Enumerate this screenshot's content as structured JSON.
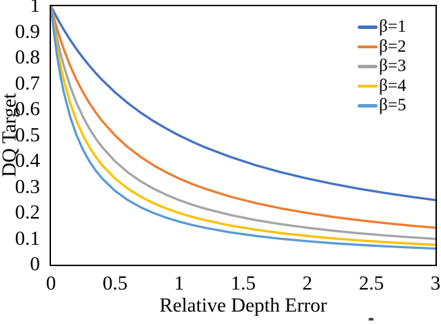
{
  "chart_data": {
    "type": "line",
    "title": "",
    "xlabel": "Relative Depth Error",
    "ylabel": "DQ Target",
    "xlim": [
      0,
      3
    ],
    "ylim": [
      0,
      1
    ],
    "grid": false,
    "legend_position": "inside-top-right",
    "axis_color": "#000000",
    "line_width": 3.3,
    "x_ticks": [
      {
        "label": "0",
        "value": 0
      },
      {
        "label": "0.5",
        "value": 0.5
      },
      {
        "label": "1",
        "value": 1
      },
      {
        "label": "1.5",
        "value": 1.5
      },
      {
        "label": "2",
        "value": 2
      },
      {
        "label": "2.5",
        "value": 2.5
      },
      {
        "label": "3",
        "value": 3
      }
    ],
    "y_ticks": [
      {
        "label": "1",
        "value": 1
      },
      {
        "label": "0.9",
        "value": 0.9
      },
      {
        "label": "0.8",
        "value": 0.8
      },
      {
        "label": "0.7",
        "value": 0.7
      },
      {
        "label": "0.6",
        "value": 0.6
      },
      {
        "label": "0.5",
        "value": 0.5
      },
      {
        "label": "0.4",
        "value": 0.4
      },
      {
        "label": "0.3",
        "value": 0.3
      },
      {
        "label": "0.2",
        "value": 0.2
      },
      {
        "label": "0.1",
        "value": 0.1
      },
      {
        "label": "0",
        "value": 0
      }
    ],
    "x": [
      0,
      0.025,
      0.05,
      0.075,
      0.1,
      0.15,
      0.2,
      0.25,
      0.3,
      0.35,
      0.4,
      0.5,
      0.6,
      0.7,
      0.8,
      0.9,
      1,
      1.1,
      1.2,
      1.4,
      1.6,
      1.8,
      2,
      2.2,
      2.4,
      2.6,
      2.8,
      3
    ],
    "series": [
      {
        "name": "β=1",
        "color": "#4472C4",
        "values": [
          1,
          0.9756,
          0.9524,
          0.9302,
          0.9091,
          0.8696,
          0.8333,
          0.8,
          0.7692,
          0.7407,
          0.7143,
          0.6667,
          0.625,
          0.5882,
          0.5556,
          0.5263,
          0.5,
          0.4762,
          0.4545,
          0.4167,
          0.3846,
          0.3571,
          0.3333,
          0.3125,
          0.2941,
          0.2778,
          0.2632,
          0.25
        ]
      },
      {
        "name": "β=2",
        "color": "#ED7D31",
        "values": [
          1,
          0.9524,
          0.9091,
          0.8696,
          0.8333,
          0.7692,
          0.7143,
          0.6667,
          0.625,
          0.5882,
          0.5556,
          0.5,
          0.4545,
          0.4167,
          0.3846,
          0.3571,
          0.3333,
          0.3125,
          0.2941,
          0.2632,
          0.2381,
          0.2174,
          0.2,
          0.1852,
          0.1724,
          0.1613,
          0.1515,
          0.1429
        ]
      },
      {
        "name": "β=3",
        "color": "#A5A5A5",
        "values": [
          1,
          0.9302,
          0.8696,
          0.8163,
          0.7692,
          0.6897,
          0.625,
          0.5714,
          0.5263,
          0.4878,
          0.4545,
          0.4,
          0.3571,
          0.3226,
          0.2941,
          0.2703,
          0.25,
          0.2326,
          0.2174,
          0.1923,
          0.1724,
          0.1563,
          0.1429,
          0.1316,
          0.122,
          0.1136,
          0.1064,
          0.1
        ]
      },
      {
        "name": "β=4",
        "color": "#FFC000",
        "values": [
          1,
          0.9091,
          0.8333,
          0.7692,
          0.7143,
          0.625,
          0.5556,
          0.5,
          0.4545,
          0.4167,
          0.3846,
          0.3333,
          0.2941,
          0.2632,
          0.2381,
          0.2174,
          0.2,
          0.1852,
          0.1724,
          0.1515,
          0.1351,
          0.122,
          0.1111,
          0.102,
          0.0943,
          0.0877,
          0.082,
          0.0769
        ]
      },
      {
        "name": "β=5",
        "color": "#5B9BD5",
        "values": [
          1,
          0.8889,
          0.8,
          0.7273,
          0.6667,
          0.5714,
          0.5,
          0.4444,
          0.4,
          0.3636,
          0.3333,
          0.2857,
          0.25,
          0.2222,
          0.2,
          0.1818,
          0.1667,
          0.1538,
          0.1429,
          0.125,
          0.1111,
          0.1,
          0.0909,
          0.0833,
          0.0769,
          0.0714,
          0.0667,
          0.0625
        ]
      }
    ]
  }
}
